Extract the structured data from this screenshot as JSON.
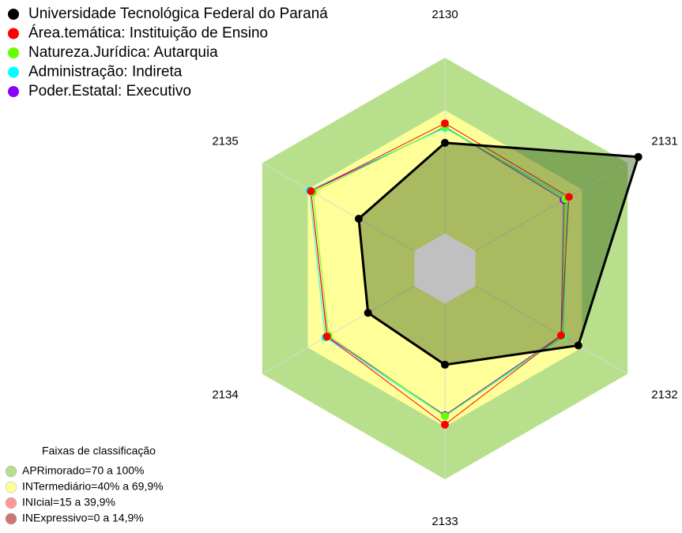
{
  "chart_data": {
    "type": "radar",
    "categories": [
      "2130",
      "2131",
      "2132",
      "2133",
      "2134",
      "2135"
    ],
    "ylim": [
      -20,
      100
    ],
    "grid": true,
    "series": [
      {
        "name": "Universidade Tecnológica Federal do Paraná",
        "color": "#000000",
        "fill": "rgba(50,90,20,0.42)",
        "values": [
          51.5,
          107,
          67.6,
          34.8,
          30.5,
          36.6
        ]
      },
      {
        "name": "Área.temática: Instituição de Ensino",
        "color": "#ff0000",
        "values": [
          62.6,
          61.4,
          56.3,
          68.9,
          57.5,
          68
        ]
      },
      {
        "name": "Natureza.Jurídica: Autarquia",
        "color": "#66ff00",
        "values": [
          60.8,
          59,
          57,
          64,
          56.4,
          66.6
        ]
      },
      {
        "name": "Administração: Indireta",
        "color": "#00ffff",
        "values": [
          60,
          60.4,
          57.7,
          64,
          58.6,
          69
        ]
      },
      {
        "name": "Poder.Estatal: Executivo",
        "color": "#8800ff",
        "values": [
          60.4,
          58,
          56.3,
          63.5,
          57.3,
          68
        ]
      }
    ],
    "bands_title": "Faixas de classificação",
    "bands": [
      {
        "label": "APRimorado=70 a 100%",
        "from": 70,
        "to": 100,
        "color": "#b8e08c",
        "legend_color": "#b8e08c"
      },
      {
        "label": "INTermediário=40% a 69,9%",
        "from": 40,
        "to": 70,
        "color": "#ffff99",
        "legend_color": "#ffff99"
      },
      {
        "label": "INIcial=15 a 39,9%",
        "from": 15,
        "to": 40,
        "color": "#ffa070",
        "legend_color": "#ff9999"
      },
      {
        "label": "INExpressivo=0 a 14,9%",
        "from": 0,
        "to": 15,
        "color": "#b03c28",
        "legend_color": "#cc7777"
      }
    ],
    "below_color": "#c0c0c0"
  }
}
